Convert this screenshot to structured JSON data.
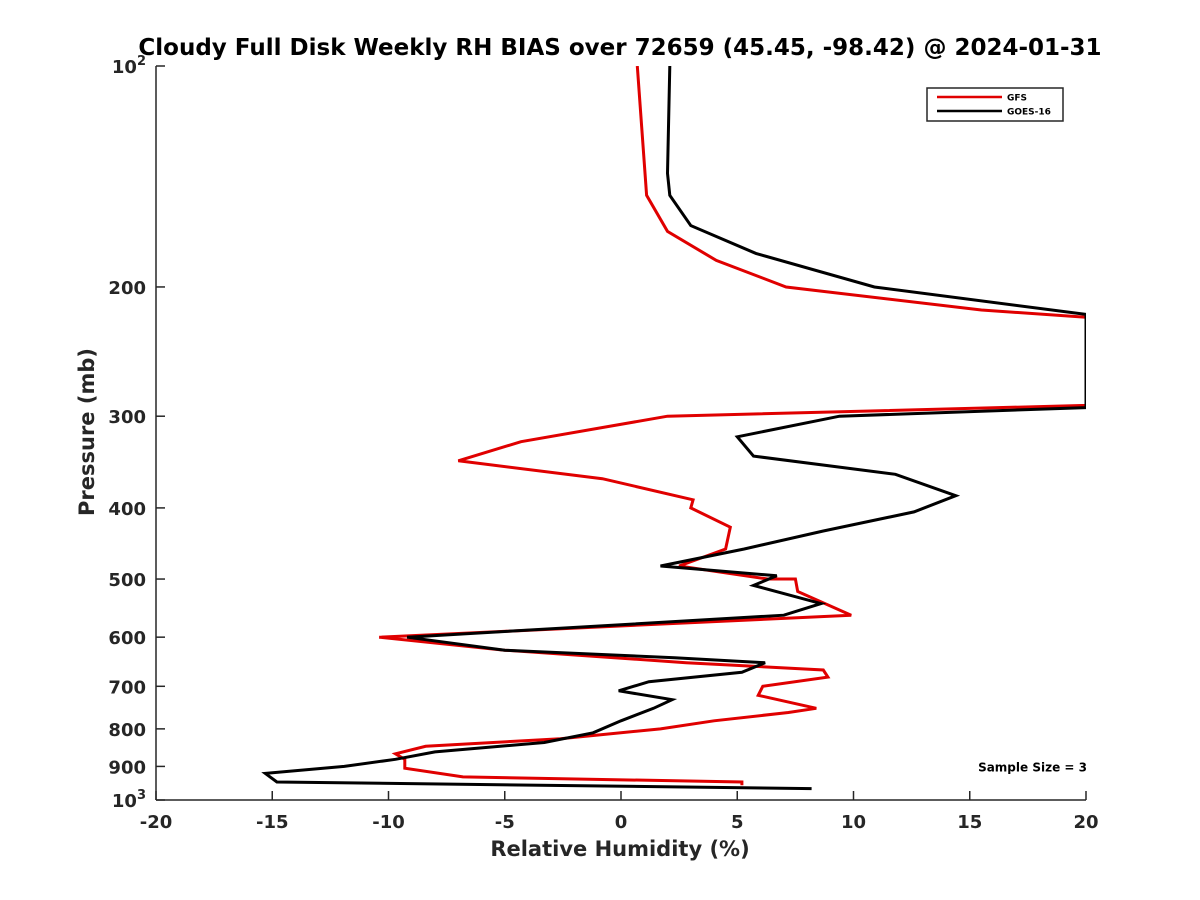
{
  "chart_data": {
    "type": "line",
    "title": "Cloudy Full Disk Weekly RH BIAS over 72659 (45.45, -98.42) @ 2024-01-31",
    "xlabel": "Relative Humidity (%)",
    "ylabel": "Pressure (mb)",
    "xlim": [
      -20,
      20
    ],
    "ylim": [
      100,
      1000
    ],
    "y_scale": "log",
    "y_reversed": true,
    "grid": false,
    "legend_position": "top-right",
    "x_ticks": [
      -20,
      -15,
      -10,
      -5,
      0,
      5,
      10,
      15,
      20
    ],
    "x_tick_labels": [
      "-20",
      "-15",
      "-10",
      "-5",
      "0",
      "5",
      "10",
      "15",
      "20"
    ],
    "y_ticks": [
      100,
      200,
      300,
      400,
      500,
      600,
      700,
      800,
      900,
      1000
    ],
    "y_tick_labels": [
      {
        "base": "10",
        "exp": "2"
      },
      {
        "base": "200",
        "exp": ""
      },
      {
        "base": "300",
        "exp": ""
      },
      {
        "base": "400",
        "exp": ""
      },
      {
        "base": "500",
        "exp": ""
      },
      {
        "base": "600",
        "exp": ""
      },
      {
        "base": "700",
        "exp": ""
      },
      {
        "base": "800",
        "exp": ""
      },
      {
        "base": "900",
        "exp": ""
      },
      {
        "base": "10",
        "exp": "3"
      }
    ],
    "series": [
      {
        "name": "GFS",
        "color": "#e00000",
        "points": [
          [
            0.7,
            100
          ],
          [
            1.1,
            150
          ],
          [
            2.0,
            168
          ],
          [
            4.1,
            184
          ],
          [
            7.1,
            200
          ],
          [
            15.5,
            215
          ],
          [
            20.0,
            220
          ],
          [
            20.0,
            290
          ],
          [
            2.0,
            300
          ],
          [
            -4.3,
            325
          ],
          [
            -7.0,
            345
          ],
          [
            -0.8,
            365
          ],
          [
            3.1,
            390
          ],
          [
            3.0,
            400
          ],
          [
            4.7,
            425
          ],
          [
            4.5,
            455
          ],
          [
            2.5,
            480
          ],
          [
            6.3,
            500
          ],
          [
            7.5,
            500
          ],
          [
            7.6,
            520
          ],
          [
            9.9,
            560
          ],
          [
            -10.4,
            600
          ],
          [
            -5.0,
            625
          ],
          [
            2.8,
            650
          ],
          [
            8.7,
            665
          ],
          [
            8.9,
            680
          ],
          [
            6.1,
            700
          ],
          [
            5.9,
            720
          ],
          [
            8.4,
            750
          ],
          [
            7.2,
            760
          ],
          [
            4.0,
            780
          ],
          [
            1.7,
            800
          ],
          [
            -2.6,
            825
          ],
          [
            -8.4,
            845
          ],
          [
            -9.7,
            865
          ],
          [
            -9.3,
            880
          ],
          [
            -9.3,
            905
          ],
          [
            -6.8,
            930
          ],
          [
            5.2,
            945
          ],
          [
            5.2,
            955
          ]
        ]
      },
      {
        "name": "GOES-16",
        "color": "#000000",
        "points": [
          [
            2.1,
            100
          ],
          [
            2.0,
            140
          ],
          [
            2.1,
            150
          ],
          [
            3.0,
            165
          ],
          [
            5.8,
            180
          ],
          [
            10.9,
            200
          ],
          [
            20.0,
            218
          ],
          [
            20.0,
            292
          ],
          [
            9.4,
            300
          ],
          [
            5.0,
            320
          ],
          [
            5.7,
            340
          ],
          [
            11.8,
            360
          ],
          [
            14.4,
            385
          ],
          [
            12.6,
            405
          ],
          [
            8.7,
            430
          ],
          [
            5.3,
            455
          ],
          [
            1.7,
            480
          ],
          [
            6.7,
            495
          ],
          [
            5.7,
            510
          ],
          [
            8.6,
            540
          ],
          [
            7.0,
            560
          ],
          [
            -9.2,
            600
          ],
          [
            -5.0,
            625
          ],
          [
            2.3,
            640
          ],
          [
            6.2,
            650
          ],
          [
            5.2,
            670
          ],
          [
            1.2,
            690
          ],
          [
            -0.1,
            710
          ],
          [
            2.2,
            730
          ],
          [
            1.4,
            750
          ],
          [
            0.0,
            780
          ],
          [
            -1.2,
            810
          ],
          [
            -3.3,
            835
          ],
          [
            -8.0,
            860
          ],
          [
            -9.7,
            880
          ],
          [
            -11.9,
            900
          ],
          [
            -15.3,
            920
          ],
          [
            -14.8,
            945
          ],
          [
            8.2,
            965
          ]
        ]
      }
    ],
    "annotations": [
      {
        "text": "Sample Size = 3",
        "x": 17.7,
        "y": 900
      }
    ]
  }
}
